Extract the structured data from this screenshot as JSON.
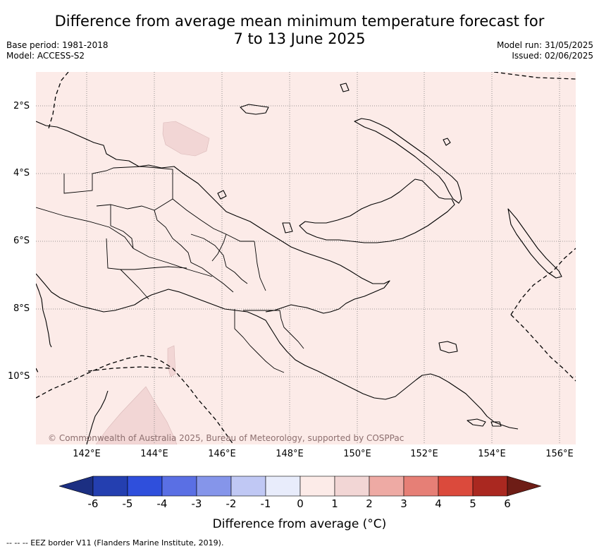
{
  "title": {
    "line1": "Difference from average mean minimum temperature forecast for",
    "line2": "7 to 13 June 2025"
  },
  "meta_left": {
    "base_period": "Base period: 1981-2018",
    "model": "Model: ACCESS-S2"
  },
  "meta_right": {
    "model_run": "Model run: 31/05/2025",
    "issued": "Issued: 02/06/2025"
  },
  "map": {
    "background_color": "#fcebe8",
    "lat_labels": [
      "2°S",
      "4°S",
      "6°S",
      "8°S",
      "10°S"
    ],
    "lon_labels": [
      "142°E",
      "144°E",
      "146°E",
      "148°E",
      "150°E",
      "152°E",
      "154°E",
      "156°E"
    ],
    "copyright": "© Commonwealth of Australia 2025, Bureau of Meteorology, supported by COSPPac",
    "warmer_patch_color": "#f2d6d5"
  },
  "colorbar": {
    "ticks": [
      "-6",
      "-5",
      "-4",
      "-3",
      "-2",
      "-1",
      "0",
      "1",
      "2",
      "3",
      "4",
      "5",
      "6"
    ],
    "colors": [
      "#1c2f82",
      "#243fb0",
      "#2f4fdc",
      "#5a6fe4",
      "#8595ea",
      "#c0c8f4",
      "#e8ecfb",
      "#fcebe8",
      "#f2d6d5",
      "#eeaaa4",
      "#e67f76",
      "#db4a3c",
      "#aa2820",
      "#6e1d16"
    ],
    "label": "Difference from average (°C)"
  },
  "footer": "-- -- -- EEZ border V11 (Flanders Marine Institute, 2019)."
}
